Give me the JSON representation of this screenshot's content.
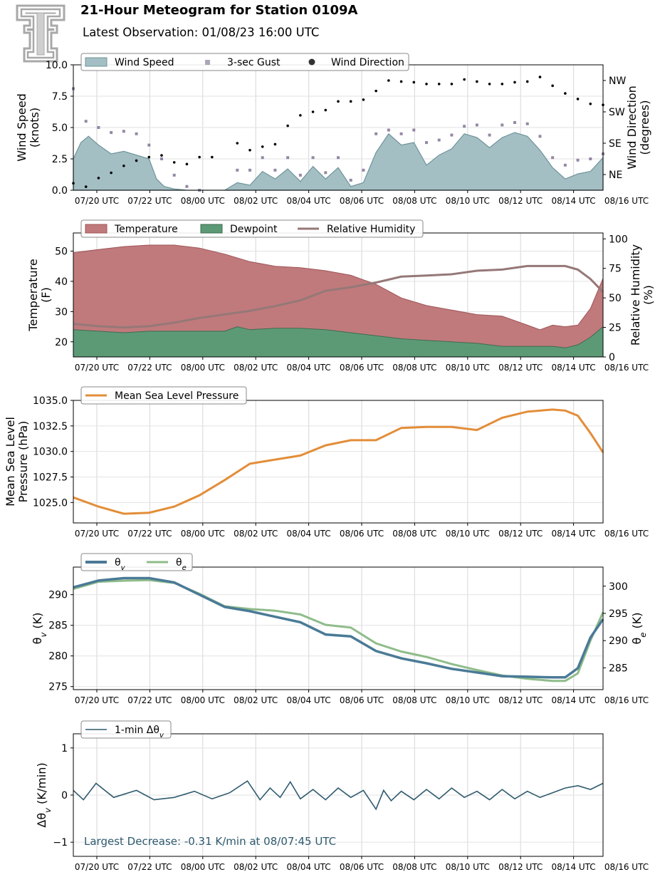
{
  "header": {
    "title": "21-Hour Meteogram for Station 0109A",
    "subtitle": "Latest Observation: 01/08/23 16:00 UTC"
  },
  "colors": {
    "wind_fill": "#a4bfc4",
    "wind_line": "#6e949a",
    "gust": "#7a6a8e",
    "direction": "#000000",
    "temperature": "#c07a7c",
    "temperature_edge": "#9e5558",
    "dewpoint": "#5c9a76",
    "dewpoint_edge": "#3f6b50",
    "rh": "#957877",
    "pressure": "#e38d38",
    "theta_v": "#4a7a96",
    "theta_e": "#8fbc8a",
    "dtheta": "#2f5a6e",
    "annotation": "#2f5a6e"
  },
  "chart_data": [
    {
      "type": "area",
      "x_ticks": [
        "07/20 UTC",
        "07/22 UTC",
        "08/00 UTC",
        "08/02 UTC",
        "08/04 UTC",
        "08/06 UTC",
        "08/08 UTC",
        "08/10 UTC",
        "08/12 UTC",
        "08/14 UTC",
        "08/16 UTC"
      ],
      "ylabel": "Wind Speed\n(knots)",
      "ylabel_right": "Wind Direction\n(degrees)",
      "ylim": [
        0,
        10
      ],
      "yticks": [
        "0.0",
        "2.5",
        "5.0",
        "7.5",
        "10.0"
      ],
      "right_ticks": [
        "NE",
        "SE",
        "SW",
        "NW"
      ],
      "right_tick_values": [
        45,
        135,
        225,
        315
      ],
      "right_ylim": [
        0,
        360
      ],
      "legend": [
        "Wind Speed",
        "3-sec Gust",
        "Wind Direction"
      ],
      "series": [
        {
          "name": "Wind Speed",
          "x": [
            0,
            0.3,
            0.6,
            1,
            1.5,
            2,
            2.5,
            3,
            3.3,
            3.6,
            4,
            4.5,
            5,
            5.5,
            6,
            6.5,
            7,
            7.5,
            8,
            8.5,
            9,
            9.5,
            10,
            10.5,
            11,
            11.5,
            12,
            12.5,
            13,
            13.5,
            14,
            14.5,
            15,
            15.5,
            16,
            16.5,
            17,
            17.5,
            18,
            18.5,
            19,
            19.5,
            20,
            20.5,
            21
          ],
          "values": [
            2.5,
            3.8,
            4.3,
            3.6,
            2.9,
            3.1,
            2.8,
            2.5,
            0.9,
            0.3,
            0.1,
            0,
            0,
            0,
            0,
            0.6,
            0.4,
            1.5,
            0.9,
            1.7,
            0.7,
            1.9,
            0.9,
            1.8,
            0.3,
            0.6,
            3.0,
            4.5,
            3.6,
            3.8,
            2.0,
            2.8,
            3.3,
            4.5,
            4.2,
            3.4,
            4.2,
            4.6,
            4.3,
            3.2,
            1.8,
            0.9,
            1.3,
            1.5,
            2.6
          ]
        },
        {
          "name": "3-sec Gust",
          "x": [
            0,
            0.5,
            1,
            1.5,
            2,
            2.5,
            3,
            3.5,
            4,
            4.5,
            5,
            6.5,
            7,
            7.5,
            8,
            8.5,
            9,
            9.5,
            10,
            10.5,
            11,
            11.5,
            12,
            12.5,
            13,
            13.5,
            14,
            14.5,
            15,
            15.5,
            16,
            16.5,
            17,
            17.5,
            18,
            18.5,
            19,
            19.5,
            20,
            20.5,
            21
          ],
          "values": [
            8.1,
            5.5,
            5.0,
            4.6,
            4.7,
            4.5,
            3.6,
            2.5,
            1.2,
            0.3,
            0,
            1.6,
            1.6,
            2.6,
            1.6,
            2.6,
            1.2,
            2.6,
            1.4,
            2.6,
            0.8,
            1.6,
            4.5,
            4.8,
            4.5,
            4.8,
            3.8,
            4.0,
            4.4,
            5.1,
            5.2,
            4.4,
            5.2,
            5.4,
            5.3,
            4.3,
            2.6,
            2.0,
            2.4,
            2.5,
            2.9
          ]
        },
        {
          "name": "Wind Direction",
          "x": [
            0,
            0.5,
            1,
            1.5,
            2,
            2.5,
            3,
            3.5,
            4,
            4.5,
            5,
            5.5,
            6.5,
            7,
            7.5,
            8,
            8.5,
            9,
            9.5,
            10,
            10.5,
            11,
            11.5,
            12,
            12.5,
            13,
            13.5,
            14,
            14.5,
            15,
            15.5,
            16,
            16.5,
            17,
            17.5,
            18,
            18.5,
            19,
            19.5,
            20,
            20.5,
            21
          ],
          "values": [
            20,
            10,
            35,
            50,
            70,
            85,
            95,
            100,
            80,
            75,
            95,
            95,
            135,
            115,
            125,
            132,
            185,
            215,
            225,
            230,
            255,
            255,
            260,
            285,
            315,
            312,
            310,
            305,
            305,
            305,
            318,
            312,
            305,
            305,
            310,
            312,
            325,
            300,
            278,
            262,
            248,
            245
          ]
        }
      ]
    },
    {
      "type": "area",
      "x_ticks": [
        "07/20 UTC",
        "07/22 UTC",
        "08/00 UTC",
        "08/02 UTC",
        "08/04 UTC",
        "08/06 UTC",
        "08/08 UTC",
        "08/10 UTC",
        "08/12 UTC",
        "08/14 UTC",
        "08/16 UTC"
      ],
      "ylabel": "Temperature\n(F)",
      "ylabel_right": "Relative Humidity\n(%)",
      "ylim": [
        15,
        56
      ],
      "yticks": [
        "20",
        "30",
        "40",
        "50"
      ],
      "right_ylim": [
        0,
        105
      ],
      "right_ticks": [
        "0",
        "25",
        "50",
        "75",
        "100"
      ],
      "legend": [
        "Temperature",
        "Dewpoint",
        "Relative Humidity"
      ],
      "series": [
        {
          "name": "Temperature",
          "x": [
            0,
            1,
            2,
            3,
            4,
            5,
            6,
            7,
            8,
            9,
            10,
            11,
            12,
            13,
            14,
            15,
            16,
            17,
            18,
            18.5,
            19,
            19.5,
            20,
            20.5,
            21
          ],
          "values": [
            49.5,
            50.5,
            51.5,
            52.0,
            52.0,
            51.0,
            49.0,
            46.5,
            45.0,
            44.5,
            43.5,
            42.0,
            39.0,
            34.5,
            32.0,
            30.5,
            29.0,
            28.5,
            25.5,
            24.0,
            25.5,
            25.0,
            25.5,
            31.0,
            41.0
          ]
        },
        {
          "name": "Dewpoint",
          "x": [
            0,
            1,
            2,
            3,
            4,
            5,
            6,
            6.5,
            7,
            8,
            9,
            10,
            11,
            12,
            13,
            14,
            15,
            16,
            17,
            18,
            19,
            19.5,
            20,
            20.5,
            21
          ],
          "values": [
            24.0,
            23.5,
            23.0,
            23.5,
            23.5,
            23.5,
            23.5,
            25.0,
            24.0,
            24.5,
            24.5,
            24.0,
            23.0,
            22.0,
            21.0,
            20.5,
            20.0,
            19.5,
            18.5,
            18.5,
            18.5,
            18.0,
            19.0,
            21.5,
            25.0
          ]
        },
        {
          "name": "Relative Humidity",
          "x": [
            0,
            1,
            2,
            3,
            4,
            5,
            6,
            7,
            8,
            9,
            10,
            11,
            12,
            13,
            14,
            15,
            16,
            17,
            18,
            19,
            19.5,
            20,
            20.5,
            21
          ],
          "values": [
            28,
            26,
            25,
            26,
            29,
            33,
            36,
            39,
            43,
            48,
            56,
            59,
            63,
            68,
            69,
            70,
            73,
            74,
            77,
            77,
            77,
            74,
            66,
            55
          ]
        }
      ]
    },
    {
      "type": "line",
      "x_ticks": [
        "07/20 UTC",
        "07/22 UTC",
        "08/00 UTC",
        "08/02 UTC",
        "08/04 UTC",
        "08/06 UTC",
        "08/08 UTC",
        "08/10 UTC",
        "08/12 UTC",
        "08/14 UTC",
        "08/16 UTC"
      ],
      "ylabel": "Mean Sea Level\nPressure (hPa)",
      "ylim": [
        1023.0,
        1035.0
      ],
      "yticks": [
        "1025.0",
        "1027.5",
        "1030.0",
        "1032.5",
        "1035.0"
      ],
      "legend": [
        "Mean Sea Level Pressure"
      ],
      "series": [
        {
          "name": "Mean Sea Level Pressure",
          "x": [
            0,
            1,
            2,
            3,
            4,
            5,
            6,
            7,
            8,
            9,
            10,
            11,
            12,
            13,
            14,
            15,
            16,
            17,
            18,
            19,
            19.5,
            20,
            20.5,
            21
          ],
          "values": [
            1025.5,
            1024.6,
            1023.9,
            1024.0,
            1024.6,
            1025.7,
            1027.2,
            1028.8,
            1029.2,
            1029.6,
            1030.6,
            1031.1,
            1031.1,
            1032.3,
            1032.4,
            1032.4,
            1032.1,
            1033.3,
            1033.9,
            1034.1,
            1034.0,
            1033.5,
            1031.8,
            1029.9
          ]
        }
      ]
    },
    {
      "type": "line",
      "x_ticks": [
        "07/20 UTC",
        "07/22 UTC",
        "08/00 UTC",
        "08/02 UTC",
        "08/04 UTC",
        "08/06 UTC",
        "08/08 UTC",
        "08/10 UTC",
        "08/12 UTC",
        "08/14 UTC",
        "08/16 UTC"
      ],
      "ylabel": "θv (K)",
      "ylabel_right": "θe (K)",
      "ylim": [
        274.5,
        294.5
      ],
      "yticks": [
        "275",
        "280",
        "285",
        "290"
      ],
      "right_ylim": [
        281,
        303.5
      ],
      "right_ticks": [
        "285",
        "290",
        "295",
        "300"
      ],
      "legend": [
        "θv",
        "θe"
      ],
      "series": [
        {
          "name": "θv",
          "x": [
            0,
            1,
            2,
            3,
            4,
            5,
            6,
            7,
            8,
            9,
            10,
            11,
            12,
            13,
            14,
            15,
            16,
            17,
            18,
            19,
            19.5,
            20,
            20.5,
            21
          ],
          "values": [
            291.2,
            292.3,
            292.7,
            292.7,
            292.0,
            290.0,
            288.0,
            287.3,
            286.4,
            285.5,
            283.5,
            283.2,
            280.8,
            279.6,
            278.8,
            277.9,
            277.3,
            276.7,
            276.6,
            276.5,
            276.5,
            278.0,
            283.0,
            286.0
          ]
        },
        {
          "name": "θe",
          "x": [
            0,
            1,
            2,
            3,
            4,
            5,
            6,
            7,
            8,
            9,
            10,
            11,
            12,
            13,
            14,
            15,
            16,
            17,
            18,
            19,
            19.5,
            20,
            20.5,
            21
          ],
          "values": [
            299.5,
            300.8,
            301.0,
            301.1,
            300.6,
            298.6,
            296.3,
            295.8,
            295.5,
            294.8,
            292.9,
            292.4,
            289.5,
            288.0,
            287.0,
            285.7,
            284.6,
            283.6,
            283.0,
            282.6,
            282.6,
            284.0,
            290.0,
            295.2
          ]
        }
      ]
    },
    {
      "type": "line",
      "x_ticks": [
        "07/20 UTC",
        "07/22 UTC",
        "08/00 UTC",
        "08/02 UTC",
        "08/04 UTC",
        "08/06 UTC",
        "08/08 UTC",
        "08/10 UTC",
        "08/12 UTC",
        "08/14 UTC",
        "08/16 UTC"
      ],
      "ylabel": "Δθv (K/min)",
      "ylim": [
        -1.3,
        1.3
      ],
      "yticks": [
        "−1",
        "0",
        "1"
      ],
      "legend": [
        "1-min Δθv"
      ],
      "annotation": "Largest Decrease: -0.31 K/min at 08/07:45 UTC",
      "series": [
        {
          "name": "1-min Δθv",
          "x": [
            0,
            0.4,
            0.9,
            1.6,
            2.5,
            3.2,
            4.0,
            4.8,
            5.5,
            6.2,
            6.9,
            7.4,
            7.8,
            8.2,
            8.6,
            9.0,
            9.5,
            10.0,
            10.5,
            11.0,
            11.5,
            12.0,
            12.3,
            12.6,
            13.0,
            13.5,
            14.0,
            14.5,
            15.0,
            15.5,
            16.0,
            16.5,
            17.0,
            17.5,
            18.0,
            18.5,
            19.0,
            19.5,
            20.0,
            20.5,
            21.0
          ],
          "values": [
            0.1,
            -0.1,
            0.25,
            -0.05,
            0.1,
            -0.1,
            -0.05,
            0.08,
            -0.08,
            0.05,
            0.3,
            -0.1,
            0.15,
            -0.05,
            0.28,
            -0.08,
            0.12,
            -0.1,
            0.15,
            -0.05,
            0.1,
            -0.3,
            0.1,
            -0.12,
            0.08,
            -0.1,
            0.12,
            -0.08,
            0.15,
            -0.05,
            0.08,
            -0.1,
            0.12,
            -0.08,
            0.08,
            -0.05,
            0.05,
            0.15,
            0.2,
            0.12,
            0.25
          ]
        }
      ]
    }
  ]
}
